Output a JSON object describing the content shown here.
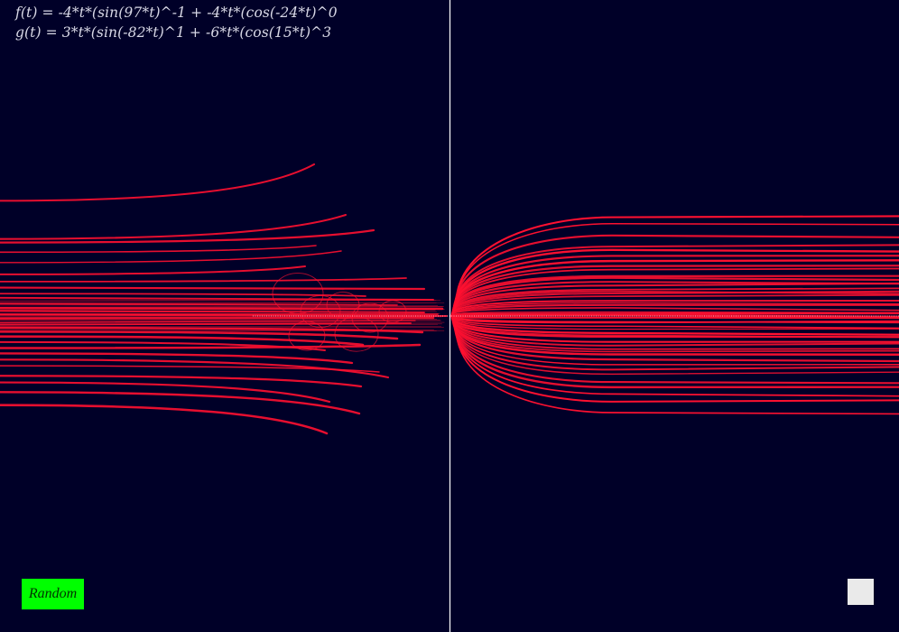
{
  "formulas": {
    "f": "f(t) = -4*t*(sin(97*t)^-1 + -4*t*(cos(-24*t)^0",
    "g": "g(t) = 3*t*(sin(-82*t)^1 + -6*t*(cos(15*t)^3"
  },
  "controls": {
    "random_label": "Random",
    "square_label": ""
  },
  "colors": {
    "background": "#000028",
    "curve": "#ff1030",
    "axis": "#ffffff",
    "random_button": "#00ff00",
    "square_button": "#eaeaea"
  },
  "plot": {
    "f": {
      "a": -4,
      "b": 97,
      "c": -1,
      "d": -4,
      "e": -24,
      "h": 0
    },
    "g": {
      "a": 3,
      "b": -82,
      "c": 1,
      "d": -6,
      "e": 15,
      "h": 3
    }
  }
}
